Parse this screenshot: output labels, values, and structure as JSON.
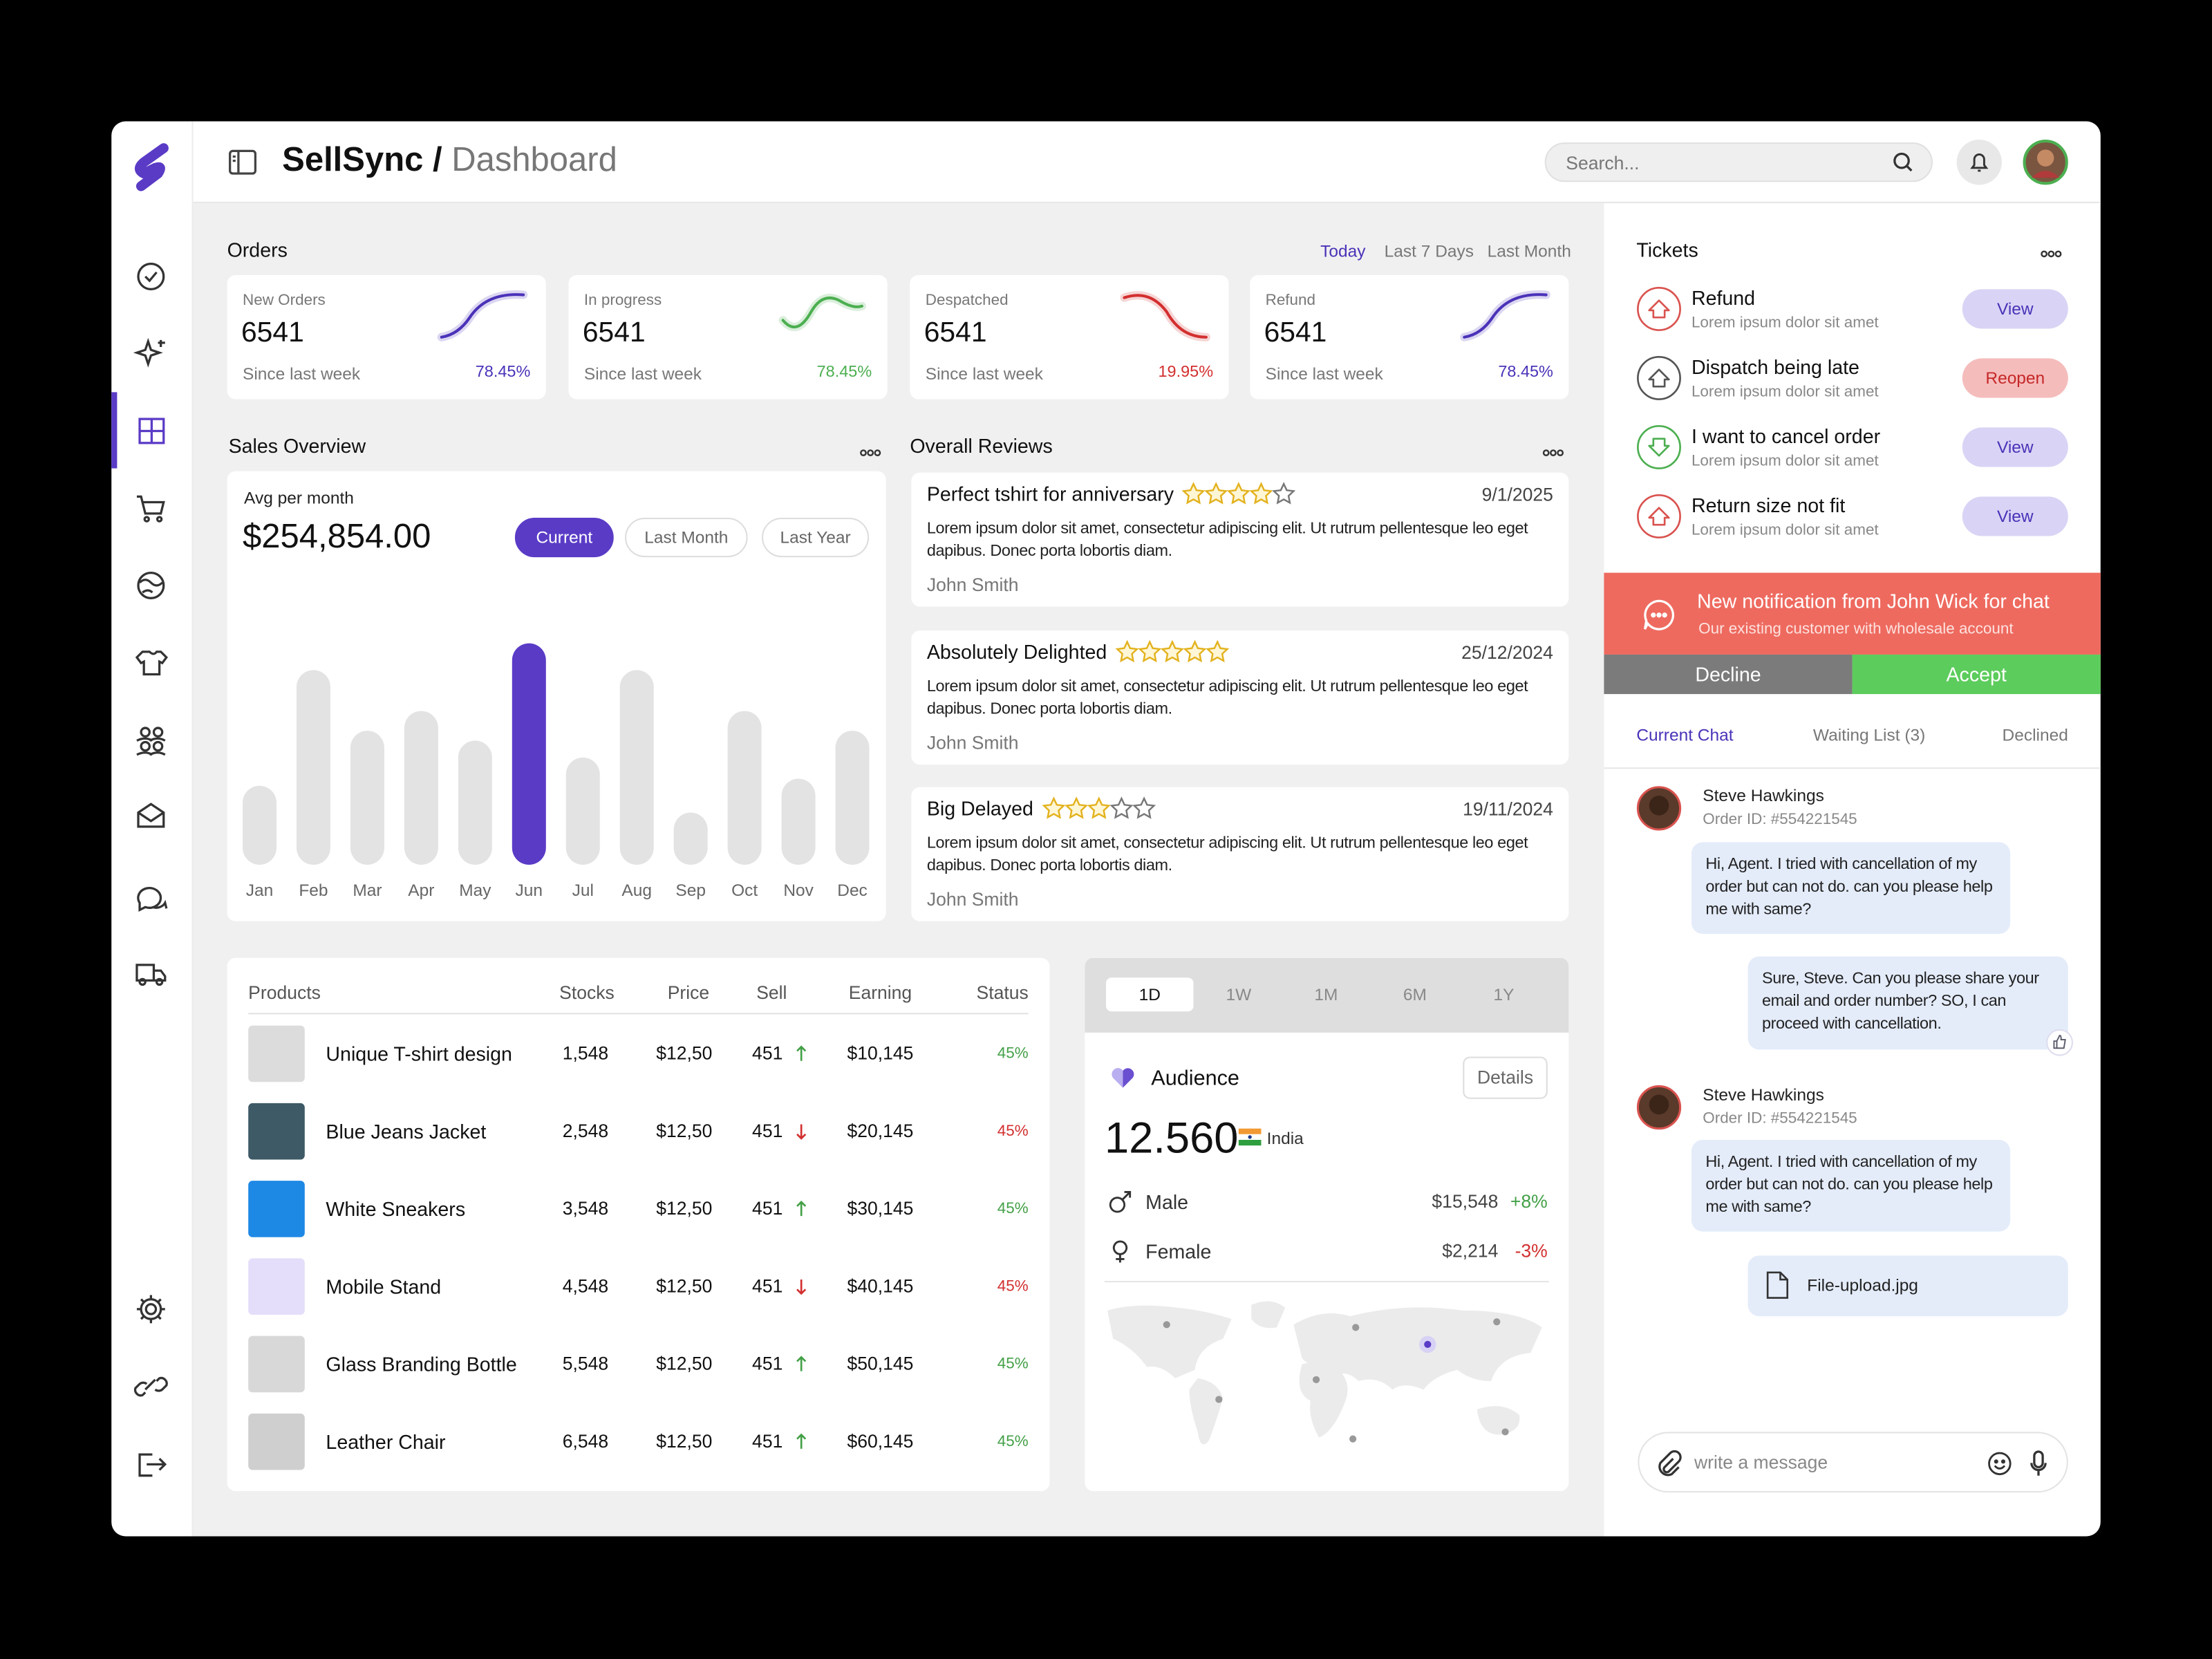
{
  "header": {
    "brand": "SellSync",
    "separator": "/",
    "page": "Dashboard",
    "search_placeholder": "Search..."
  },
  "orders": {
    "title": "Orders",
    "filters": [
      "Today",
      "Last 7 Days",
      "Last Month"
    ],
    "active_filter": "Today",
    "cards": [
      {
        "label": "New Orders",
        "value": "6541",
        "note": "Since last week",
        "change": "78.45%",
        "color": "#4b32b8",
        "trend": "up"
      },
      {
        "label": "In progress",
        "value": "6541",
        "note": "Since last week",
        "change": "78.45%",
        "color": "#4caf50",
        "trend": "wave"
      },
      {
        "label": "Despatched",
        "value": "6541",
        "note": "Since last week",
        "change": "19.95%",
        "color": "#d32f2f",
        "trend": "down"
      },
      {
        "label": "Refund",
        "value": "6541",
        "note": "Since last week",
        "change": "78.45%",
        "color": "#4b32b8",
        "trend": "up"
      }
    ]
  },
  "sales": {
    "title": "Sales Overview",
    "subtitle": "Avg per month",
    "total": "$254,854.00",
    "ranges": [
      "Current",
      "Last Month",
      "Last Year"
    ],
    "active_range": "Current",
    "chart": {
      "type": "bar",
      "categories": [
        "Jan",
        "Feb",
        "Mar",
        "Apr",
        "May",
        "Jun",
        "Jul",
        "Aug",
        "Sep",
        "Oct",
        "Nov",
        "Dec"
      ],
      "values": [
        56,
        138,
        95,
        109,
        88,
        157,
        76,
        138,
        37,
        109,
        61,
        95
      ],
      "ylim": [
        0,
        160
      ],
      "color": "#e3e3e3",
      "highlight": "Jun",
      "highlight_color": "#5a3bc6"
    }
  },
  "reviews": {
    "title": "Overall Reviews",
    "max_stars": 5,
    "items": [
      {
        "title": "Perfect tshirt for anniversary",
        "stars": 4,
        "date": "9/1/2025",
        "text": "Lorem ipsum dolor sit amet, consectetur adipiscing elit. Ut rutrum pellentesque leo eget dapibus. Donec porta lobortis diam.",
        "author": "John Smith"
      },
      {
        "title": "Absolutely Delighted",
        "stars": 5,
        "date": "25/12/2024",
        "text": "Lorem ipsum dolor sit amet, consectetur adipiscing elit. Ut rutrum pellentesque leo eget dapibus. Donec porta lobortis diam.",
        "author": "John Smith"
      },
      {
        "title": "Big Delayed",
        "stars": 3,
        "date": "19/11/2024",
        "text": "Lorem ipsum dolor sit amet, consectetur adipiscing elit. Ut rutrum pellentesque leo eget dapibus. Donec porta lobortis diam.",
        "author": "John Smith"
      }
    ]
  },
  "products": {
    "headers": [
      "Products",
      "Stocks",
      "Price",
      "Sell",
      "Earning",
      "Status"
    ],
    "rows": [
      {
        "name": "Unique T-shirt design",
        "stocks": "1,548",
        "price": "$12,50",
        "sell": "451",
        "trend": "up",
        "earning": "$10,145",
        "status": "45%"
      },
      {
        "name": "Blue Jeans Jacket",
        "stocks": "2,548",
        "price": "$12,50",
        "sell": "451",
        "trend": "down",
        "earning": "$20,145",
        "status": "45%"
      },
      {
        "name": "White Sneakers",
        "stocks": "3,548",
        "price": "$12,50",
        "sell": "451",
        "trend": "up",
        "earning": "$30,145",
        "status": "45%"
      },
      {
        "name": "Mobile Stand",
        "stocks": "4,548",
        "price": "$12,50",
        "sell": "451",
        "trend": "down",
        "earning": "$40,145",
        "status": "45%"
      },
      {
        "name": "Glass Branding Bottle",
        "stocks": "5,548",
        "price": "$12,50",
        "sell": "451",
        "trend": "up",
        "earning": "$50,145",
        "status": "45%"
      },
      {
        "name": "Leather Chair",
        "stocks": "6,548",
        "price": "$12,50",
        "sell": "451",
        "trend": "up",
        "earning": "$60,145",
        "status": "45%"
      }
    ]
  },
  "audience": {
    "tabs": [
      "1D",
      "1W",
      "1M",
      "6M",
      "1Y"
    ],
    "active_tab": "1D",
    "title": "Audience",
    "button": "Details",
    "total": "12.560",
    "country": "India",
    "rows": [
      {
        "label": "Male",
        "amount": "$15,548",
        "change": "+8%",
        "color": "#43a047"
      },
      {
        "label": "Female",
        "amount": "$2,214",
        "change": "-3%",
        "color": "#d32f2f"
      }
    ]
  },
  "tickets": {
    "title": "Tickets",
    "items": [
      {
        "title": "Refund",
        "subtitle": "Lorem ipsum dolor sit amet",
        "action": "View",
        "icon_color": "#d9534f"
      },
      {
        "title": "Dispatch being late",
        "subtitle": "Lorem ipsum dolor sit amet",
        "action": "Reopen",
        "icon_color": "#555555"
      },
      {
        "title": "I want to cancel order",
        "subtitle": "Lorem ipsum dolor sit amet",
        "action": "View",
        "icon_color": "#4caf50"
      },
      {
        "title": "Return size not fit",
        "subtitle": "Lorem ipsum dolor sit amet",
        "action": "View",
        "icon_color": "#d9534f"
      }
    ]
  },
  "notification": {
    "title": "New notification from John Wick for chat",
    "subtitle": "Our existing customer with wholesale account",
    "decline": "Decline",
    "accept": "Accept"
  },
  "chat": {
    "tabs": [
      "Current Chat",
      "Waiting List (3)",
      "Declined"
    ],
    "active_tab": "Current Chat",
    "messages": [
      {
        "from": "customer",
        "name": "Steve Hawkings",
        "order_id": "Order ID: #554221545",
        "text": "Hi, Agent. I tried with cancellation of my order but can not do. can you please help me with same?"
      },
      {
        "from": "agent",
        "text": "Sure, Steve. Can you please share your email and order number? SO, I can proceed with cancellation."
      },
      {
        "from": "customer",
        "name": "Steve Hawkings",
        "order_id": "Order ID: #554221545",
        "text": "Hi, Agent. I tried with cancellation of my order but can not do. can you please help me with same?"
      },
      {
        "from": "agent",
        "file": "File-upload.jpg"
      }
    ],
    "placeholder": "write a message"
  }
}
